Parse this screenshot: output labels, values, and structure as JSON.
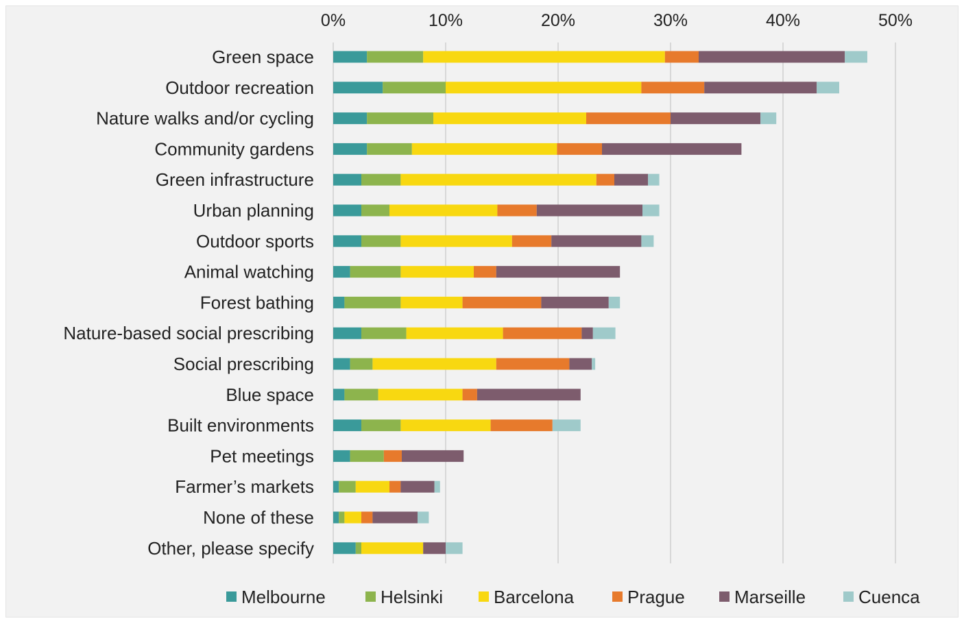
{
  "chart_data": {
    "type": "bar",
    "orientation": "horizontal",
    "stacked": true,
    "title": "",
    "xlabel": "",
    "ylabel": "",
    "xlim": [
      0,
      50
    ],
    "x_ticks": [
      "0%",
      "10%",
      "20%",
      "30%",
      "40%",
      "50%"
    ],
    "x_tick_values": [
      0,
      10,
      20,
      30,
      40,
      50
    ],
    "x_axis_position": "top",
    "grid": "vertical",
    "legend_position": "bottom",
    "categories": [
      "Green space",
      "Outdoor recreation",
      "Nature walks and/or cycling",
      "Community gardens",
      "Green infrastructure",
      "Urban planning",
      "Outdoor sports",
      "Animal watching",
      "Forest bathing",
      "Nature-based social prescribing",
      "Social prescribing",
      "Blue space",
      "Built environments",
      "Pet meetings",
      "Farmer’s markets",
      "None of these",
      "Other, please specify"
    ],
    "series": [
      {
        "name": "Melbourne",
        "color": "#3a9a9a",
        "values": [
          3.0,
          4.4,
          3.0,
          3.0,
          2.5,
          2.5,
          2.5,
          1.5,
          1.0,
          2.5,
          1.5,
          1.0,
          2.5,
          1.5,
          0.5,
          0.5,
          2.0
        ]
      },
      {
        "name": "Helsinki",
        "color": "#8db44d",
        "values": [
          5.0,
          5.6,
          5.9,
          4.0,
          3.5,
          2.5,
          3.5,
          4.5,
          5.0,
          4.0,
          2.0,
          3.0,
          3.5,
          3.0,
          1.5,
          0.5,
          0.5
        ]
      },
      {
        "name": "Barcelona",
        "color": "#f8d811",
        "values": [
          21.5,
          17.4,
          13.6,
          12.9,
          17.4,
          9.6,
          9.9,
          6.5,
          5.5,
          8.6,
          11.0,
          7.5,
          8.0,
          0.0,
          3.0,
          1.5,
          5.5
        ]
      },
      {
        "name": "Prague",
        "color": "#e77a2c",
        "values": [
          3.0,
          5.6,
          7.5,
          4.0,
          1.6,
          3.5,
          3.5,
          2.0,
          7.0,
          7.0,
          6.5,
          1.3,
          5.5,
          1.6,
          1.0,
          1.0,
          0.0
        ]
      },
      {
        "name": "Marseille",
        "color": "#7d5c6d",
        "values": [
          13.0,
          10.0,
          8.0,
          12.4,
          3.0,
          9.4,
          8.0,
          11.0,
          6.0,
          1.0,
          2.0,
          9.2,
          0.0,
          5.5,
          3.0,
          4.0,
          2.0
        ]
      },
      {
        "name": "Cuenca",
        "color": "#9fcaca",
        "values": [
          2.0,
          2.0,
          1.4,
          0.0,
          1.0,
          1.5,
          1.1,
          0.0,
          1.0,
          2.0,
          0.3,
          0.0,
          2.5,
          0.0,
          0.5,
          1.0,
          1.5
        ]
      }
    ]
  }
}
